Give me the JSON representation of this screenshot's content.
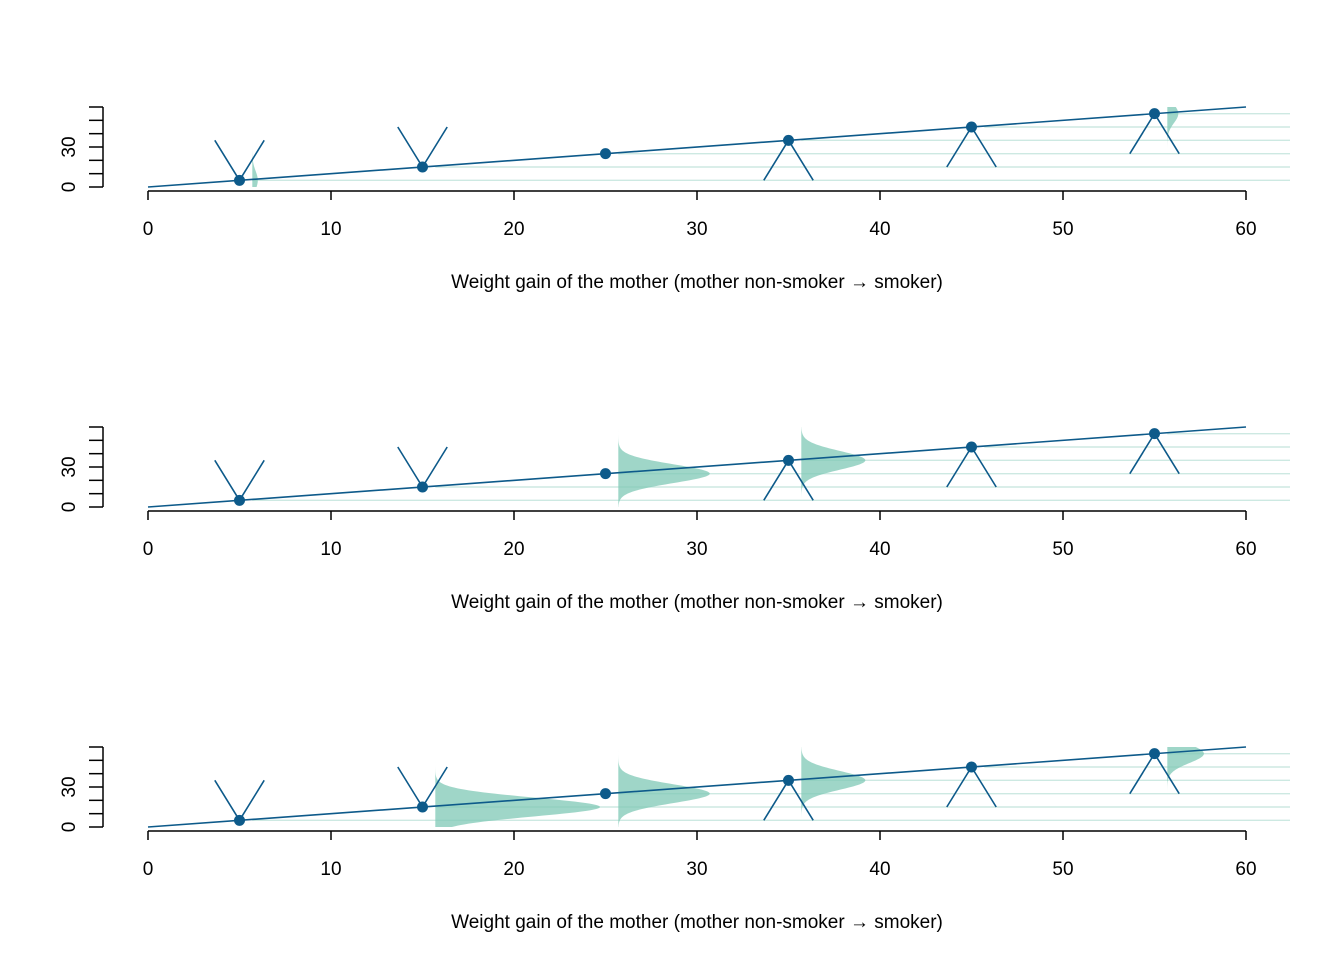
{
  "colors": {
    "line": "#0d5a8a",
    "density": "#7fc8b6",
    "density_faint": "#cde9e2",
    "axis": "#000000"
  },
  "chart_data": [
    {
      "type": "line",
      "panel": 1,
      "xlabel": "Weight gain of the mother (mother non-smoker → smoker)",
      "ylabel": "",
      "xlim": [
        0,
        60
      ],
      "ylim": [
        0,
        60
      ],
      "xticks": [
        "0",
        "10",
        "20",
        "30",
        "40",
        "50",
        "60"
      ],
      "yticks": [
        "0",
        "30"
      ],
      "line": {
        "x": [
          0,
          60
        ],
        "y": [
          0,
          60
        ]
      },
      "points": {
        "x": [
          5,
          15,
          25,
          35,
          45,
          55
        ],
        "y": [
          5,
          15,
          25,
          35,
          45,
          55
        ]
      },
      "markers": [
        {
          "x": 5,
          "shape": "v"
        },
        {
          "x": 15,
          "shape": "v"
        },
        {
          "x": 25,
          "shape": "none"
        },
        {
          "x": 35,
          "shape": "lambda"
        },
        {
          "x": 45,
          "shape": "lambda"
        },
        {
          "x": 55,
          "shape": "lambda"
        }
      ],
      "densities": [
        {
          "x": 5,
          "peak": 0.3
        },
        {
          "x": 15,
          "peak": 0.0
        },
        {
          "x": 25,
          "peak": 0.0
        },
        {
          "x": 35,
          "peak": 0.0
        },
        {
          "x": 45,
          "peak": 0.0
        },
        {
          "x": 55,
          "peak": 0.6
        }
      ]
    },
    {
      "type": "line",
      "panel": 2,
      "xlabel": "Weight gain of the mother (mother non-smoker → smoker)",
      "ylabel": "",
      "xlim": [
        0,
        60
      ],
      "ylim": [
        0,
        60
      ],
      "xticks": [
        "0",
        "10",
        "20",
        "30",
        "40",
        "50",
        "60"
      ],
      "yticks": [
        "0",
        "30"
      ],
      "line": {
        "x": [
          0,
          60
        ],
        "y": [
          0,
          60
        ]
      },
      "points": {
        "x": [
          5,
          15,
          25,
          35,
          45,
          55
        ],
        "y": [
          5,
          15,
          25,
          35,
          45,
          55
        ]
      },
      "markers": [
        {
          "x": 5,
          "shape": "v"
        },
        {
          "x": 15,
          "shape": "v"
        },
        {
          "x": 25,
          "shape": "none"
        },
        {
          "x": 35,
          "shape": "lambda"
        },
        {
          "x": 45,
          "shape": "lambda"
        },
        {
          "x": 55,
          "shape": "lambda"
        }
      ],
      "densities": [
        {
          "x": 5,
          "peak": 0.0
        },
        {
          "x": 15,
          "peak": 0.0
        },
        {
          "x": 25,
          "peak": 5.0
        },
        {
          "x": 35,
          "peak": 3.5
        },
        {
          "x": 45,
          "peak": 0.0
        },
        {
          "x": 55,
          "peak": 0.0
        }
      ]
    },
    {
      "type": "line",
      "panel": 3,
      "xlabel": "Weight gain of the mother (mother non-smoker → smoker)",
      "ylabel": "",
      "xlim": [
        0,
        60
      ],
      "ylim": [
        0,
        60
      ],
      "xticks": [
        "0",
        "10",
        "20",
        "30",
        "40",
        "50",
        "60"
      ],
      "yticks": [
        "0",
        "30"
      ],
      "line": {
        "x": [
          0,
          60
        ],
        "y": [
          0,
          60
        ]
      },
      "points": {
        "x": [
          5,
          15,
          25,
          35,
          45,
          55
        ],
        "y": [
          5,
          15,
          25,
          35,
          45,
          55
        ]
      },
      "markers": [
        {
          "x": 5,
          "shape": "v"
        },
        {
          "x": 15,
          "shape": "v"
        },
        {
          "x": 25,
          "shape": "none"
        },
        {
          "x": 35,
          "shape": "lambda"
        },
        {
          "x": 45,
          "shape": "lambda"
        },
        {
          "x": 55,
          "shape": "lambda"
        }
      ],
      "densities": [
        {
          "x": 5,
          "peak": 0.0
        },
        {
          "x": 15,
          "peak": 9.0
        },
        {
          "x": 25,
          "peak": 5.0
        },
        {
          "x": 35,
          "peak": 3.5
        },
        {
          "x": 45,
          "peak": 0.0
        },
        {
          "x": 55,
          "peak": 2.0
        }
      ]
    }
  ]
}
